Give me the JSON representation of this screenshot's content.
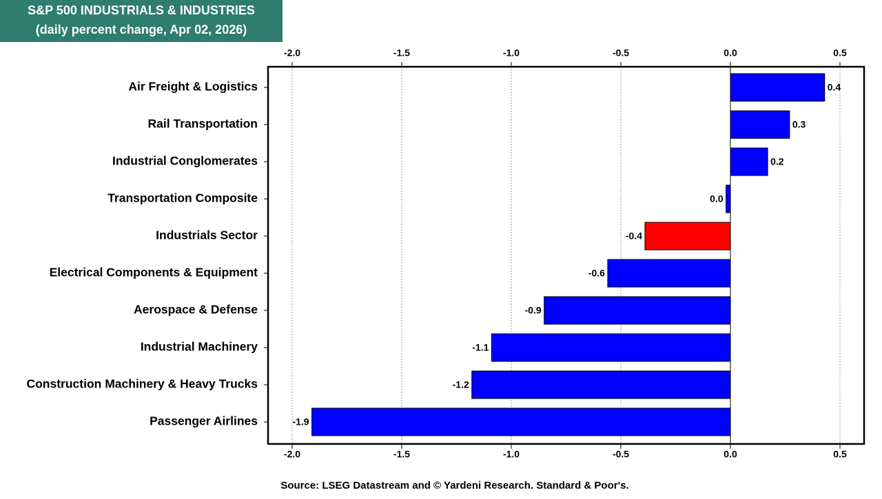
{
  "chart_data": {
    "type": "bar",
    "orientation": "horizontal",
    "title": [
      "S&P 500 INDUSTRIALS & INDUSTRIES",
      "(daily percent change, Apr 02, 2026)"
    ],
    "source": "Source: LSEG Datastream and © Yardeni Research. Standard & Poor's.",
    "categories": [
      "Air Freight & Logistics",
      "Rail Transportation",
      "Industrial Conglomerates",
      "Transportation Composite",
      "Industrials Sector",
      "Electrical Components & Equipment",
      "Aerospace & Defense",
      "Industrial Machinery",
      "Construction Machinery & Heavy Trucks",
      "Passenger Airlines"
    ],
    "values": [
      0.43,
      0.27,
      0.17,
      -0.02,
      -0.39,
      -0.56,
      -0.85,
      -1.09,
      -1.18,
      -1.91
    ],
    "value_labels": [
      "0.4",
      "0.3",
      "0.2",
      "0.0",
      "-0.4",
      "-0.6",
      "-0.9",
      "-1.1",
      "-1.2",
      "-1.9"
    ],
    "colors": [
      "#0000ff",
      "#0000ff",
      "#0000ff",
      "#0000ff",
      "#ff0000",
      "#0000ff",
      "#0000ff",
      "#0000ff",
      "#0000ff",
      "#0000ff"
    ],
    "xlim": [
      -2.11,
      0.61
    ],
    "xticks": [
      {
        "value": -2,
        "label": "-2.0"
      },
      -1.5,
      {
        "value": -1,
        "label": "-1.0"
      },
      -0.5,
      {
        "value": 0,
        "label": "0.0"
      },
      0.5
    ],
    "grid": true
  }
}
